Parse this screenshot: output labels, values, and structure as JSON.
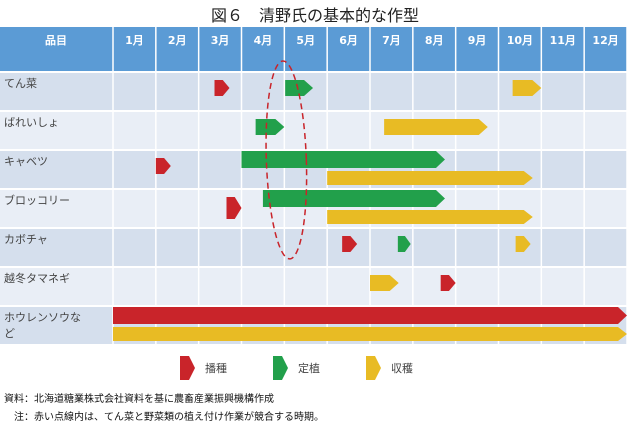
{
  "title": "図６　清野氏の基本的な作型",
  "header": {
    "item": "品目",
    "months": [
      "1月",
      "2月",
      "3月",
      "4月",
      "5月",
      "6月",
      "7月",
      "8月",
      "9月",
      "10月",
      "11月",
      "12月"
    ]
  },
  "colors": {
    "header": "#5b9bd5",
    "row_a": "#d5dfed",
    "row_b": "#e9eef6",
    "sowing": "#c9242a",
    "planting": "#22a04b",
    "harvest": "#e8bb24",
    "highlight": "#c9242a"
  },
  "rows": [
    {
      "name": "てん菜",
      "bars": [
        {
          "type": "sowing",
          "start": 3.37,
          "end": 3.72,
          "lane": "single"
        },
        {
          "type": "planting",
          "start": 5.02,
          "end": 5.67,
          "lane": "single"
        },
        {
          "type": "harvest",
          "start": 10.33,
          "end": 11.0,
          "lane": "single"
        }
      ]
    },
    {
      "name": "ばれいしょ",
      "bars": [
        {
          "type": "planting",
          "start": 4.33,
          "end": 5.0,
          "lane": "single"
        },
        {
          "type": "harvest",
          "start": 7.33,
          "end": 9.75,
          "lane": "single"
        }
      ]
    },
    {
      "name": "キャベツ",
      "bars": [
        {
          "type": "sowing",
          "start": 2.0,
          "end": 2.35,
          "lane": "single"
        },
        {
          "type": "planting",
          "start": 4.0,
          "end": 8.75,
          "lane": "top"
        },
        {
          "type": "harvest",
          "start": 6.0,
          "end": 10.8,
          "lane": "bottom"
        }
      ]
    },
    {
      "name": "ブロッコリー",
      "bars": [
        {
          "type": "sowing",
          "start": 3.65,
          "end": 4.0,
          "lane": "upper"
        },
        {
          "type": "planting",
          "start": 4.5,
          "end": 8.75,
          "lane": "top"
        },
        {
          "type": "harvest",
          "start": 6.0,
          "end": 10.8,
          "lane": "bottom"
        }
      ]
    },
    {
      "name": "カボチャ",
      "bars": [
        {
          "type": "sowing",
          "start": 6.35,
          "end": 6.7,
          "lane": "single"
        },
        {
          "type": "planting",
          "start": 7.65,
          "end": 7.95,
          "lane": "single"
        },
        {
          "type": "harvest",
          "start": 10.4,
          "end": 10.75,
          "lane": "single"
        }
      ]
    },
    {
      "name": "越冬タマネギ",
      "bars": [
        {
          "type": "harvest",
          "start": 7.0,
          "end": 7.67,
          "lane": "single"
        },
        {
          "type": "sowing",
          "start": 8.65,
          "end": 9.0,
          "lane": "single"
        }
      ]
    },
    {
      "name": "ホウレンソウなど",
      "bars": [
        {
          "type": "sowing",
          "start": 1.0,
          "end": 13.0,
          "lane": "top"
        },
        {
          "type": "harvest",
          "start": 1.0,
          "end": 13.0,
          "lane": "bottom"
        }
      ]
    }
  ],
  "highlight": {
    "from_month": 4.6,
    "to_month": 5.4
  },
  "legend": [
    {
      "type": "sowing",
      "label": "播種"
    },
    {
      "type": "planting",
      "label": "定植"
    },
    {
      "type": "harvest",
      "label": "収穫"
    }
  ],
  "footer": {
    "source": "資料：北海道糖業株式会社資料を基に農畜産業振興機構作成",
    "note": "　注：赤い点線内は、てん菜と野菜類の植え付け作業が競合する時期。"
  }
}
